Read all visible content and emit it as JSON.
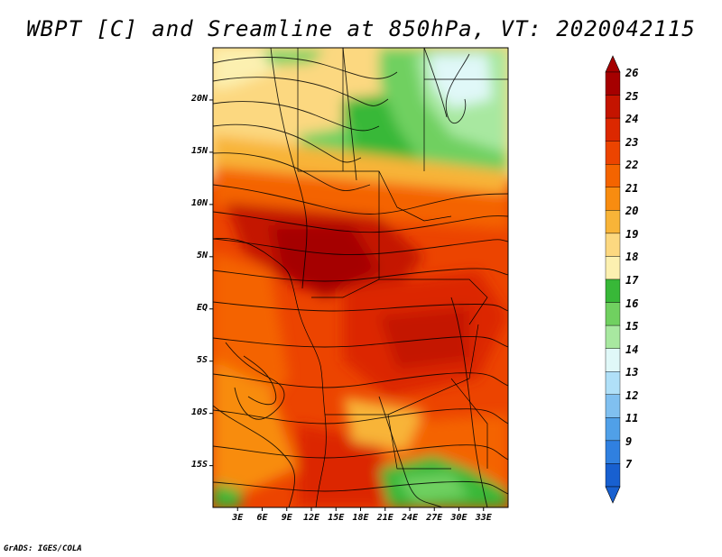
{
  "title": "WBPT [C] and Sreamline at 850hPa, VT: 2020042115",
  "credit": "GrADS: IGES/COLA",
  "map": {
    "variable": "WBPT",
    "units": "C",
    "level": "850hPa",
    "valid_time": "2020042115",
    "lat_range": [
      -19,
      25
    ],
    "lon_range": [
      0,
      36
    ],
    "y_ticks": [
      {
        "label": "20N",
        "lat": 20
      },
      {
        "label": "15N",
        "lat": 15
      },
      {
        "label": "10N",
        "lat": 10
      },
      {
        "label": "5N",
        "lat": 5
      },
      {
        "label": "EQ",
        "lat": 0
      },
      {
        "label": "5S",
        "lat": -5
      },
      {
        "label": "10S",
        "lat": -10
      },
      {
        "label": "15S",
        "lat": -15
      }
    ],
    "x_ticks": [
      {
        "label": "3E",
        "lon": 3
      },
      {
        "label": "6E",
        "lon": 6
      },
      {
        "label": "9E",
        "lon": 9
      },
      {
        "label": "12E",
        "lon": 12
      },
      {
        "label": "15E",
        "lon": 15
      },
      {
        "label": "18E",
        "lon": 18
      },
      {
        "label": "21E",
        "lon": 21
      },
      {
        "label": "24E",
        "lon": 24
      },
      {
        "label": "27E",
        "lon": 27
      },
      {
        "label": "30E",
        "lon": 30
      },
      {
        "label": "33E",
        "lon": 33
      }
    ]
  },
  "colorbar": {
    "labels": [
      "26",
      "25",
      "24",
      "23",
      "22",
      "21",
      "20",
      "19",
      "18",
      "17",
      "16",
      "15",
      "14",
      "13",
      "12",
      "11",
      "9",
      "7"
    ],
    "colors": [
      "#a50000",
      "#c41400",
      "#dc2800",
      "#ec4400",
      "#f46400",
      "#f88c10",
      "#f8b438",
      "#fcd880",
      "#fcf0b0",
      "#38b838",
      "#70d060",
      "#a8e8a0",
      "#e0f8f8",
      "#b0e0f8",
      "#80c0f0",
      "#50a0e8",
      "#3080e0",
      "#1860d0"
    ],
    "arrow_top_color": "#a50000",
    "arrow_bottom_color": "#1860d0"
  }
}
